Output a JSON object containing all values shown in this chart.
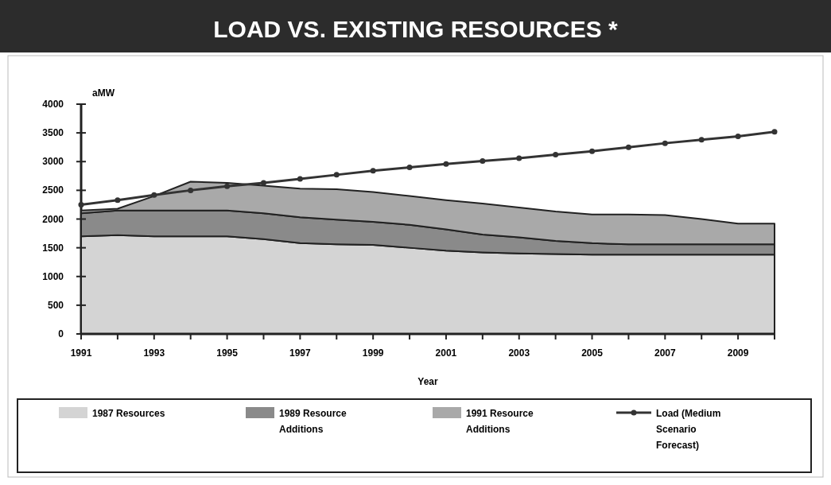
{
  "chart_data": {
    "type": "area",
    "title": "LOAD VS. EXISTING RESOURCES *",
    "xlabel": "Year",
    "ylabel": "aMW",
    "stacked": true,
    "x": [
      1991,
      1992,
      1993,
      1994,
      1995,
      1996,
      1997,
      1998,
      1999,
      2000,
      2001,
      2002,
      2003,
      2004,
      2005,
      2006,
      2007,
      2008,
      2009,
      2010
    ],
    "xlim": [
      1991,
      2010
    ],
    "xticks": [
      1991,
      {
        "value": 1992,
        "label": null
      },
      1993,
      {
        "value": 1994,
        "label": null
      },
      1995,
      {
        "value": 1996,
        "label": null
      },
      1997,
      {
        "value": 1998,
        "label": null
      },
      1999,
      {
        "value": 2000,
        "label": null
      },
      2001,
      {
        "value": 2002,
        "label": null
      },
      2003,
      {
        "value": 2004,
        "label": null
      },
      2005,
      {
        "value": 2006,
        "label": null
      },
      2007,
      {
        "value": 2008,
        "label": null
      },
      2009,
      {
        "value": 2010,
        "label": null
      }
    ],
    "ylim": [
      0,
      4000
    ],
    "yticks": [
      0,
      500,
      1000,
      1500,
      2000,
      2500,
      3000,
      3500,
      4000
    ],
    "grid": false,
    "legend": "bottom",
    "series": [
      {
        "name": "1987 Resources",
        "color": "#d4d4d4",
        "values": [
          1700,
          1720,
          1700,
          1700,
          1700,
          1650,
          1580,
          1560,
          1550,
          1500,
          1450,
          1420,
          1400,
          1390,
          1380,
          1380,
          1380,
          1380,
          1380,
          1380
        ]
      },
      {
        "name": "1989 Resource Additions",
        "color": "#8a8a8a",
        "values": [
          400,
          430,
          450,
          450,
          450,
          450,
          450,
          430,
          400,
          400,
          370,
          310,
          280,
          230,
          200,
          180,
          180,
          180,
          180,
          180
        ]
      },
      {
        "name": "1991 Resource Additions",
        "color": "#a9a9a9",
        "values": [
          50,
          30,
          250,
          500,
          480,
          480,
          500,
          530,
          520,
          500,
          510,
          540,
          520,
          510,
          500,
          520,
          510,
          440,
          360,
          360
        ]
      },
      {
        "name": "Load (Medium Scenario Forecast)",
        "type": "line",
        "color": "#333333",
        "marker": "circle",
        "values": [
          2250,
          2330,
          2420,
          2500,
          2570,
          2630,
          2700,
          2770,
          2840,
          2900,
          2960,
          3010,
          3060,
          3120,
          3180,
          3250,
          3320,
          3380,
          3440,
          3520
        ]
      }
    ]
  }
}
